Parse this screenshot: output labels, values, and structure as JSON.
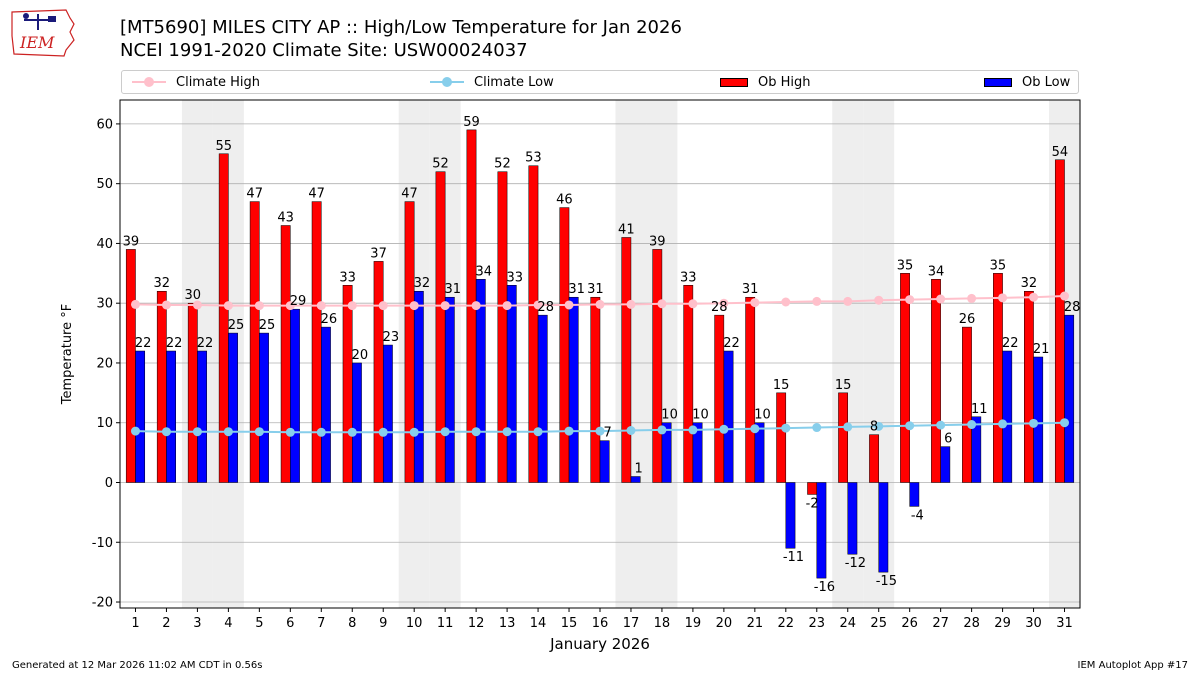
{
  "logo": {
    "text": "IEM"
  },
  "header": {
    "title_line1": "[MT5690] MILES CITY AP :: High/Low Temperature for Jan 2026",
    "title_line2": "NCEI 1991-2020 Climate Site: USW00024037"
  },
  "footer": {
    "left": "Generated at 12 Mar 2026 11:02 AM CDT in 0.56s",
    "right": "IEM Autoplot App #17"
  },
  "colors": {
    "ob_high": "#ff0000",
    "ob_low": "#0000ff",
    "climate_high": "#ffc0cb",
    "climate_low": "#87ceeb",
    "weekend_band": "#eeeeee",
    "grid": "#b0b0b0"
  },
  "chart_data": {
    "type": "bar",
    "xlabel": "January 2026",
    "ylabel": "Temperature °F",
    "ylim": [
      -21,
      64
    ],
    "yticks": [
      -20,
      -10,
      0,
      10,
      20,
      30,
      40,
      50,
      60
    ],
    "grid": "horizontal",
    "legend_position": "top",
    "categories": [
      "1",
      "2",
      "3",
      "4",
      "5",
      "6",
      "7",
      "8",
      "9",
      "10",
      "11",
      "12",
      "13",
      "14",
      "15",
      "16",
      "17",
      "18",
      "19",
      "20",
      "21",
      "22",
      "23",
      "24",
      "25",
      "26",
      "27",
      "28",
      "29",
      "30",
      "31"
    ],
    "shaded_days": [
      3,
      4,
      10,
      11,
      17,
      18,
      24,
      25,
      31
    ],
    "series": [
      {
        "name": "Climate High",
        "kind": "line",
        "values": [
          29.8,
          29.7,
          29.7,
          29.6,
          29.6,
          29.6,
          29.6,
          29.6,
          29.6,
          29.6,
          29.6,
          29.6,
          29.6,
          29.7,
          29.7,
          29.8,
          29.8,
          29.9,
          29.9,
          30.0,
          30.1,
          30.2,
          30.3,
          30.3,
          30.5,
          30.6,
          30.7,
          30.8,
          30.9,
          31.0,
          31.2
        ]
      },
      {
        "name": "Climate Low",
        "kind": "line",
        "values": [
          8.6,
          8.5,
          8.5,
          8.5,
          8.5,
          8.4,
          8.4,
          8.4,
          8.4,
          8.4,
          8.5,
          8.5,
          8.5,
          8.5,
          8.6,
          8.6,
          8.7,
          8.8,
          8.8,
          8.9,
          9.0,
          9.1,
          9.2,
          9.3,
          9.4,
          9.5,
          9.6,
          9.7,
          9.8,
          9.9,
          10.0
        ]
      },
      {
        "name": "Ob High",
        "kind": "bar",
        "values": [
          39,
          32,
          30,
          55,
          47,
          43,
          47,
          33,
          37,
          47,
          52,
          59,
          52,
          53,
          46,
          31,
          41,
          39,
          33,
          28,
          31,
          15,
          -2,
          15,
          8,
          35,
          34,
          26,
          35,
          32,
          54
        ]
      },
      {
        "name": "Ob Low",
        "kind": "bar",
        "values": [
          22,
          22,
          22,
          25,
          25,
          29,
          26,
          20,
          23,
          32,
          31,
          34,
          33,
          28,
          31,
          7,
          1,
          10,
          10,
          22,
          10,
          -11,
          -16,
          -12,
          -15,
          -4,
          6,
          11,
          22,
          21,
          28
        ]
      }
    ]
  }
}
